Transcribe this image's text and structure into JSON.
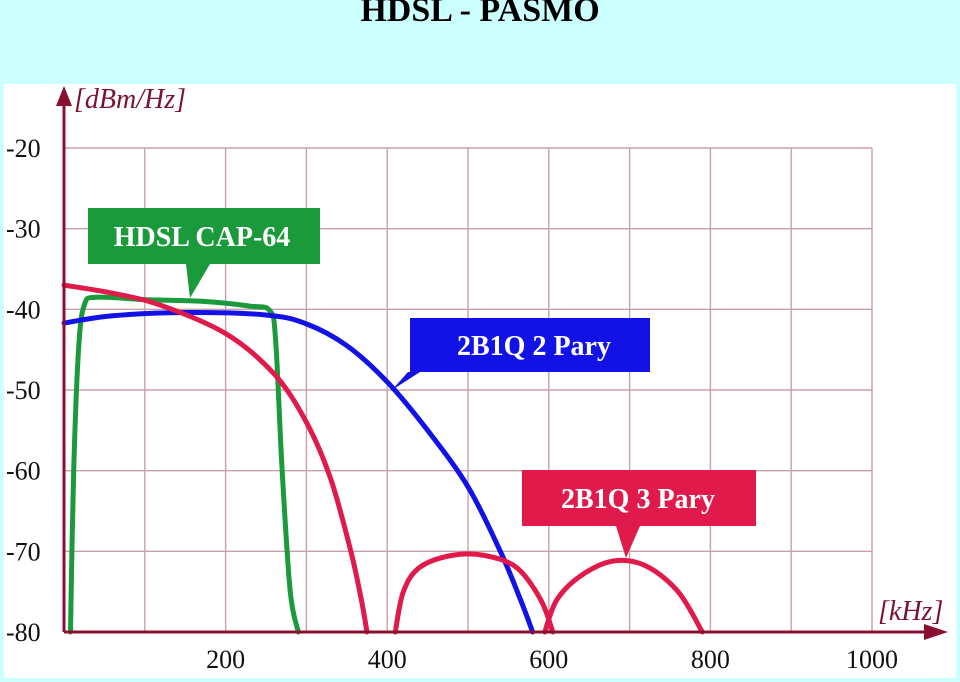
{
  "title": "HDSL - PASMO",
  "chart_data": {
    "type": "line",
    "xlabel": "[kHz]",
    "ylabel": "[dBm/Hz]",
    "xlim": [
      0,
      1000
    ],
    "ylim": [
      -80,
      -20
    ],
    "x_ticks": [
      "200",
      "400",
      "600",
      "800",
      "1000"
    ],
    "y_ticks": [
      "-20",
      "-30",
      "-40",
      "-50",
      "-60",
      "-70",
      "-80"
    ],
    "grid": true,
    "colors": {
      "hdsl": "#1a9a3a",
      "pary2": "#1212e6",
      "pary3": "#e01a4a",
      "axis": "#8a1030",
      "grid": "#c8a0a8"
    },
    "series": [
      {
        "name": "HDSL CAP-64",
        "color": "#1a9a3a",
        "points": [
          [
            8,
            -80
          ],
          [
            12,
            -60
          ],
          [
            18,
            -45
          ],
          [
            25,
            -39.5
          ],
          [
            40,
            -38.5
          ],
          [
            100,
            -38.8
          ],
          [
            170,
            -39
          ],
          [
            230,
            -39.6
          ],
          [
            255,
            -40.2
          ],
          [
            262,
            -44
          ],
          [
            270,
            -60
          ],
          [
            280,
            -75
          ],
          [
            290,
            -80
          ]
        ]
      },
      {
        "name": "2B1Q 2 Pary",
        "color": "#1212e6",
        "points": [
          [
            0,
            -41.7
          ],
          [
            60,
            -40.8
          ],
          [
            150,
            -40.4
          ],
          [
            250,
            -40.7
          ],
          [
            300,
            -41.8
          ],
          [
            350,
            -44.5
          ],
          [
            400,
            -49
          ],
          [
            450,
            -55
          ],
          [
            500,
            -62
          ],
          [
            540,
            -70
          ],
          [
            565,
            -76
          ],
          [
            580,
            -80
          ]
        ]
      },
      {
        "name": "2B1Q 3 Pary",
        "color": "#e01a4a",
        "segments": [
          [
            [
              0,
              -37
            ],
            [
              60,
              -38
            ],
            [
              120,
              -39.5
            ],
            [
              200,
              -43
            ],
            [
              260,
              -48
            ],
            [
              300,
              -54
            ],
            [
              330,
              -61
            ],
            [
              355,
              -70
            ],
            [
              368,
              -76
            ],
            [
              375,
              -80
            ]
          ],
          [
            [
              410,
              -80
            ],
            [
              420,
              -75
            ],
            [
              440,
              -72
            ],
            [
              480,
              -70.5
            ],
            [
              520,
              -70.5
            ],
            [
              560,
              -72
            ],
            [
              590,
              -76
            ],
            [
              605,
              -80
            ]
          ],
          [
            [
              595,
              -80
            ],
            [
              610,
              -76
            ],
            [
              640,
              -73
            ],
            [
              680,
              -71.2
            ],
            [
              720,
              -71.8
            ],
            [
              760,
              -75
            ],
            [
              790,
              -80
            ]
          ]
        ]
      }
    ],
    "annotations": [
      {
        "text": "HDSL CAP-64",
        "color": "#1a9a3a"
      },
      {
        "text": "2B1Q 2 Pary",
        "color": "#1212e6"
      },
      {
        "text": "2B1Q 3 Pary",
        "color": "#e01a4a"
      }
    ]
  }
}
